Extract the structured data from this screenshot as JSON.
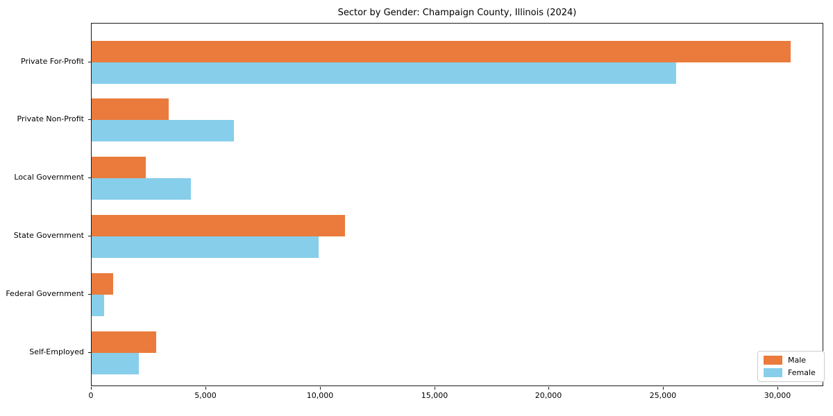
{
  "chart_data": {
    "type": "bar",
    "orientation": "horizontal",
    "title": "Sector by Gender: Champaign County, Illinois (2024)",
    "categories": [
      "Private For-Profit",
      "Private Non-Profit",
      "Local Government",
      "State Government",
      "Federal Government",
      "Self-Employed"
    ],
    "series": [
      {
        "name": "Male",
        "color": "#ea7b3c",
        "values": [
          30550,
          3375,
          2370,
          11065,
          940,
          2830
        ]
      },
      {
        "name": "Female",
        "color": "#87ceeb",
        "values": [
          25540,
          6230,
          4345,
          9910,
          550,
          2070
        ]
      }
    ],
    "xlabel": "",
    "ylabel": "",
    "xlim": [
      0,
      32000
    ],
    "xticks": [
      0,
      5000,
      10000,
      15000,
      20000,
      25000,
      30000
    ],
    "xtick_labels": [
      "0",
      "5,000",
      "10,000",
      "15,000",
      "20,000",
      "25,000",
      "30,000"
    ],
    "grid": false,
    "legend": {
      "position": "lower right",
      "labels": [
        "Male",
        "Female"
      ]
    }
  }
}
